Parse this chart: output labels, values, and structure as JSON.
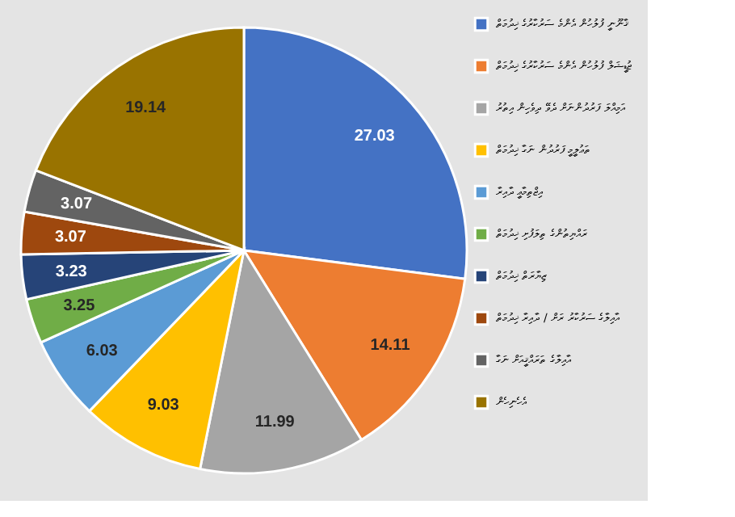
{
  "chart_data": {
    "type": "pie",
    "categories": [
      "ޤާނޫނީ ފުލުހުން އެންމެ ސަރުކާރުގެ ޚިދުމަތް",
      "ޖުޑީޝަލް ފުލުހުން އެންމެ ސަރުކާރުގެ ޚިދުމަތް",
      "އަމިއްލަ ފަރުދުންނަށް ދެވޭ ދިވެހިން އިތުރު",
      "ތަޢުލީމީ ފަރުދުން ނަގާ ޚިދުމަތް",
      "އިޖްތިމާޢީ ދާއިރާ",
      "ރައްޔިތުންގެ ތިލަފުށި ޚިދުމަތް",
      "ޒިޔާރަތް ޚިދުމަތް",
      "އާއިލާގެ ސަރުކާރު ރަށް / ދާއިރާ ޚިދުމަތް",
      "އާއިލާގެ ތަރައްޤީއަށް ނަގާ",
      "އެހެނިހެން"
    ],
    "values": [
      27.03,
      14.11,
      11.99,
      9.03,
      6.03,
      3.25,
      3.23,
      3.07,
      3.07,
      19.14
    ],
    "colors": [
      "#4472c4",
      "#ed7d31",
      "#a5a5a5",
      "#ffc000",
      "#5b9bd5",
      "#70ad47",
      "#264478",
      "#9e480e",
      "#636363",
      "#997300"
    ],
    "data_labels": true,
    "legend": "right"
  }
}
